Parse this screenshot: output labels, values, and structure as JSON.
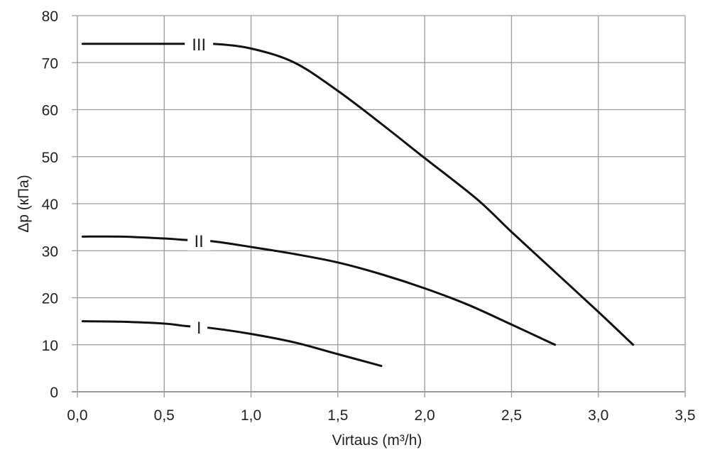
{
  "chart_data": {
    "type": "line",
    "title": "",
    "xlabel": "Virtaus (m³/h)",
    "ylabel": "Δp (кПа)",
    "xlim": [
      0,
      3.5
    ],
    "ylim": [
      0,
      80
    ],
    "grid": true,
    "xticks": [
      0,
      0.5,
      1.0,
      1.5,
      2.0,
      2.5,
      3.0,
      3.5
    ],
    "xtick_labels": [
      "0,0",
      "0,5",
      "1,0",
      "1,5",
      "2,0",
      "2,5",
      "3,0",
      "3,5"
    ],
    "yticks": [
      0,
      10,
      20,
      30,
      40,
      50,
      60,
      70,
      80
    ],
    "ytick_labels": [
      "0",
      "10",
      "20",
      "30",
      "40",
      "50",
      "60",
      "70",
      "80"
    ],
    "line_color": "#111111",
    "grid_color": "#9a9a9a",
    "series": [
      {
        "name": "I",
        "label_at_x": 0.7,
        "x": [
          0.03,
          0.25,
          0.5,
          0.62,
          0.78,
          1.0,
          1.25,
          1.5,
          1.75
        ],
        "y": [
          15,
          14.9,
          14.5,
          14.0,
          13.5,
          12.3,
          10.5,
          8.0,
          5.5
        ]
      },
      {
        "name": "II",
        "label_at_x": 0.7,
        "x": [
          0.03,
          0.25,
          0.5,
          0.62,
          0.78,
          1.0,
          1.25,
          1.5,
          1.75,
          2.0,
          2.25,
          2.5,
          2.75
        ],
        "y": [
          33,
          33,
          32.6,
          32.3,
          32.0,
          30.8,
          29.3,
          27.5,
          25.0,
          22.0,
          18.5,
          14.3,
          10.0
        ]
      },
      {
        "name": "III",
        "label_at_x": 0.7,
        "x": [
          0.03,
          0.5,
          0.62,
          0.78,
          1.0,
          1.25,
          1.5,
          1.75,
          2.0,
          2.3,
          2.5,
          2.75,
          3.0,
          3.2
        ],
        "y": [
          74,
          74,
          74,
          74,
          73,
          70,
          64,
          57,
          49.7,
          41,
          34,
          25.5,
          17,
          10
        ]
      }
    ]
  }
}
